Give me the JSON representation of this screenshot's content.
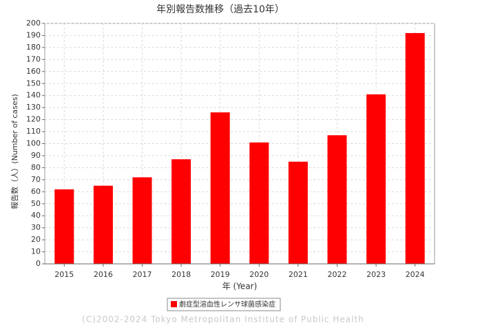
{
  "chart_data": {
    "type": "bar",
    "title": "年別報告数推移（過去10年）",
    "y_label": "報告数（人）(Number of cases)",
    "x_label": "年 (Year)",
    "categories": [
      "2015",
      "2016",
      "2017",
      "2018",
      "2019",
      "2020",
      "2021",
      "2022",
      "2023",
      "2024"
    ],
    "series": [
      {
        "name": "劇症型溶血性レンサ球菌感染症",
        "color": "#ff0000",
        "values": [
          62,
          65,
          72,
          87,
          126,
          101,
          85,
          107,
          141,
          192
        ]
      }
    ],
    "ylim": [
      0,
      200
    ],
    "yticks": [
      0,
      10,
      20,
      30,
      40,
      50,
      60,
      70,
      80,
      90,
      100,
      110,
      120,
      130,
      140,
      150,
      160,
      170,
      180,
      190,
      200
    ],
    "grid": true,
    "footer": "(C)2002-2024 Tokyo Metropolitan Institute of Public Health"
  }
}
